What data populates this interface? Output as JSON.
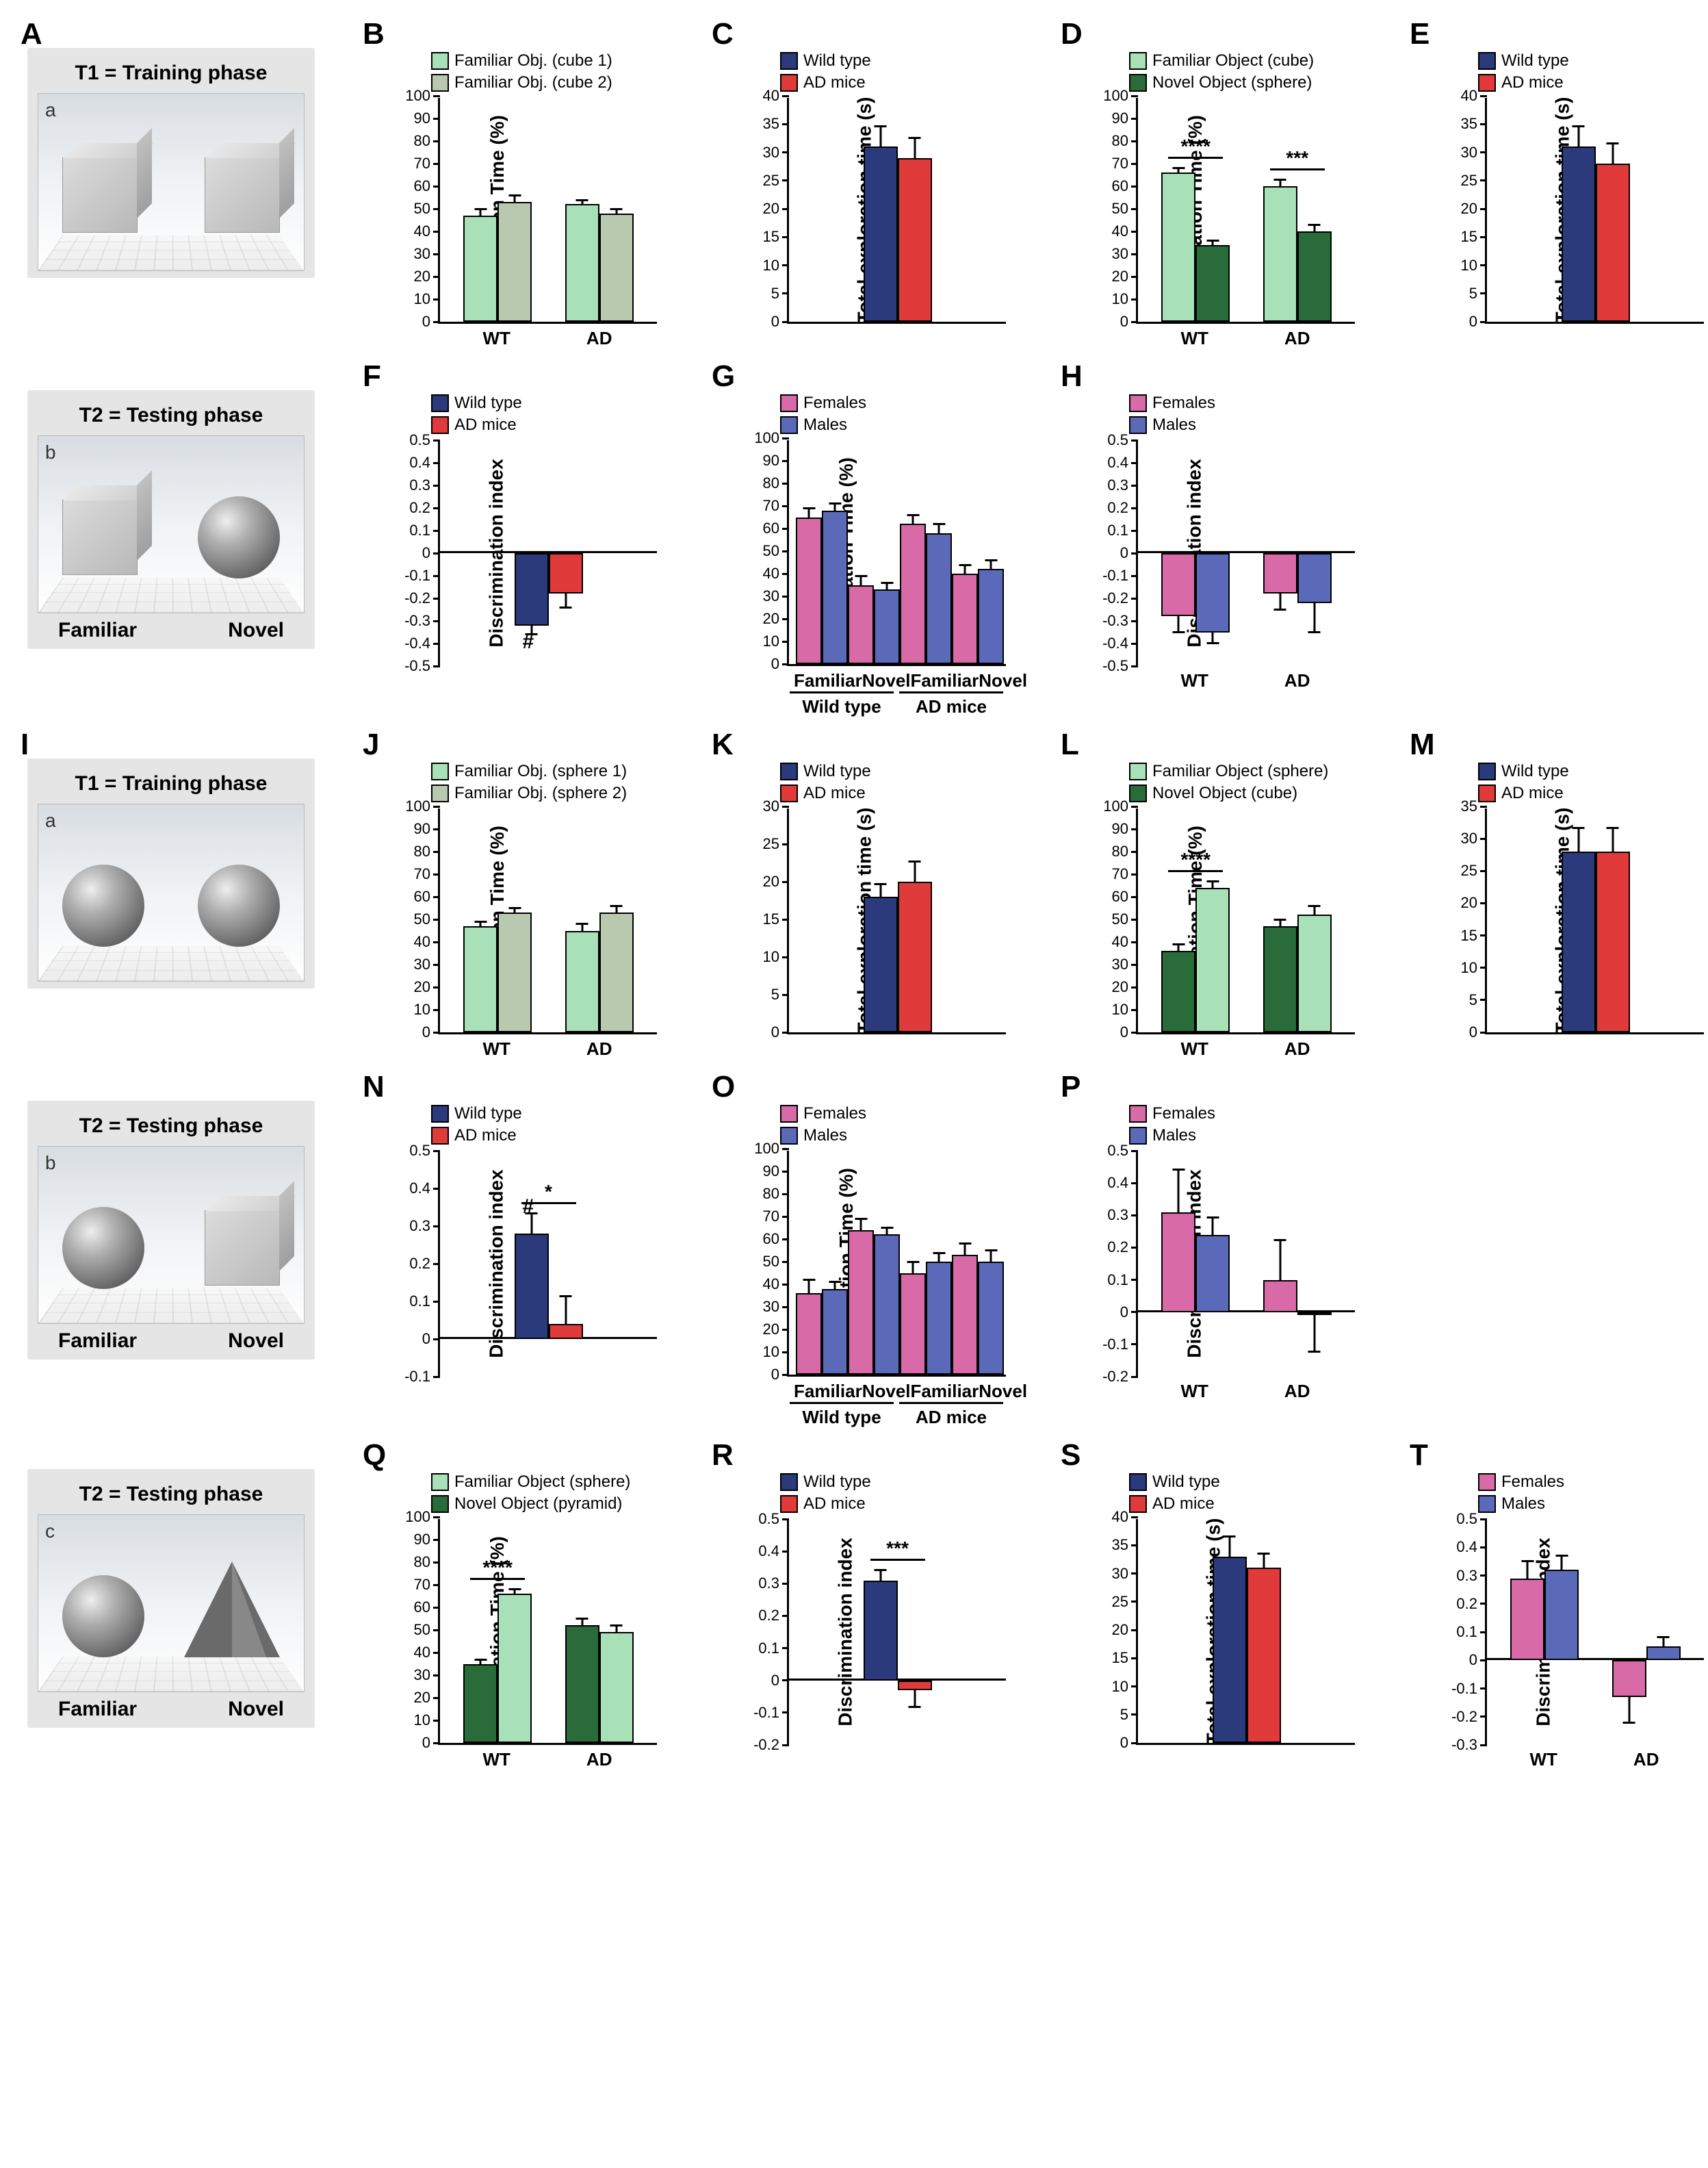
{
  "colors": {
    "lightgreen": "#a8e0b8",
    "sage": "#b9c9b0",
    "darkgreen": "#2a6b3a",
    "navy": "#2a3a7a",
    "red": "#e03a3a",
    "pink": "#d86aa8",
    "blue": "#5a6ab8"
  },
  "schematic_labels": {
    "training": "T1 = Training phase",
    "testing": "T2 = Testing phase",
    "familiar": "Familiar",
    "novel": "Novel"
  },
  "axis_labels": {
    "exploration_pct": "Exploration Time (%)",
    "total_time": "Total exploration time (s)",
    "discrimination": "Discrimination index"
  },
  "tick_labels": {
    "wt": "WT",
    "ad": "AD",
    "wildtype": "Wild type",
    "admice": "AD mice",
    "familiar": "Familiar",
    "novel": "Novel",
    "females": "Females",
    "males": "Males"
  },
  "legends": {
    "B": [
      {
        "label": "Familiar Obj. (cube 1)",
        "color": "lightgreen"
      },
      {
        "label": "Familiar Obj. (cube 2)",
        "color": "sage"
      }
    ],
    "C": [
      {
        "label": "Wild type",
        "color": "navy"
      },
      {
        "label": "AD mice",
        "color": "red"
      }
    ],
    "D": [
      {
        "label": "Familiar Object (cube)",
        "color": "lightgreen"
      },
      {
        "label": "Novel Object (sphere)",
        "color": "darkgreen"
      }
    ],
    "E": [
      {
        "label": "Wild type",
        "color": "navy"
      },
      {
        "label": "AD mice",
        "color": "red"
      }
    ],
    "F": [
      {
        "label": "Wild type",
        "color": "navy"
      },
      {
        "label": "AD mice",
        "color": "red"
      }
    ],
    "G": [
      {
        "label": "Females",
        "color": "pink"
      },
      {
        "label": "Males",
        "color": "blue"
      }
    ],
    "H": [
      {
        "label": "Females",
        "color": "pink"
      },
      {
        "label": "Males",
        "color": "blue"
      }
    ],
    "J": [
      {
        "label": "Familiar Obj. (sphere 1)",
        "color": "lightgreen"
      },
      {
        "label": "Familiar Obj. (sphere 2)",
        "color": "sage"
      }
    ],
    "K": [
      {
        "label": "Wild type",
        "color": "navy"
      },
      {
        "label": "AD mice",
        "color": "red"
      }
    ],
    "L": [
      {
        "label": "Familiar Object (sphere)",
        "color": "lightgreen"
      },
      {
        "label": "Novel Object (cube)",
        "color": "darkgreen"
      }
    ],
    "M": [
      {
        "label": "Wild type",
        "color": "navy"
      },
      {
        "label": "AD mice",
        "color": "red"
      }
    ],
    "N": [
      {
        "label": "Wild type",
        "color": "navy"
      },
      {
        "label": "AD mice",
        "color": "red"
      }
    ],
    "O": [
      {
        "label": "Females",
        "color": "pink"
      },
      {
        "label": "Males",
        "color": "blue"
      }
    ],
    "P": [
      {
        "label": "Females",
        "color": "pink"
      },
      {
        "label": "Males",
        "color": "blue"
      }
    ],
    "Q": [
      {
        "label": "Familiar Object (sphere)",
        "color": "lightgreen"
      },
      {
        "label": "Novel Object (pyramid)",
        "color": "darkgreen"
      }
    ],
    "R": [
      {
        "label": "Wild type",
        "color": "navy"
      },
      {
        "label": "AD mice",
        "color": "red"
      }
    ],
    "S": [
      {
        "label": "Wild type",
        "color": "navy"
      },
      {
        "label": "AD mice",
        "color": "red"
      }
    ],
    "T": [
      {
        "label": "Females",
        "color": "pink"
      },
      {
        "label": "Males",
        "color": "blue"
      }
    ]
  },
  "charts": {
    "B": {
      "ylabel": "exploration_pct",
      "ylim": [
        0,
        100
      ],
      "ystep": 10,
      "groups": [
        {
          "x": "WT",
          "bars": [
            {
              "c": "lightgreen",
              "v": 47,
              "e": 4
            },
            {
              "c": "sage",
              "v": 53,
              "e": 4
            }
          ]
        },
        {
          "x": "AD",
          "bars": [
            {
              "c": "lightgreen",
              "v": 52,
              "e": 3
            },
            {
              "c": "sage",
              "v": 48,
              "e": 3
            }
          ]
        }
      ]
    },
    "C": {
      "ylabel": "total_time",
      "ylim": [
        0,
        40
      ],
      "ystep": 5,
      "groups": [
        {
          "x": "",
          "bars": [
            {
              "c": "navy",
              "v": 31,
              "e": 4
            },
            {
              "c": "red",
              "v": 29,
              "e": 4
            }
          ]
        }
      ]
    },
    "D": {
      "ylabel": "exploration_pct",
      "ylim": [
        0,
        100
      ],
      "ystep": 10,
      "groups": [
        {
          "x": "WT",
          "bars": [
            {
              "c": "lightgreen",
              "v": 66,
              "e": 3
            },
            {
              "c": "darkgreen",
              "v": 34,
              "e": 3
            }
          ],
          "sig": "****"
        },
        {
          "x": "AD",
          "bars": [
            {
              "c": "lightgreen",
              "v": 60,
              "e": 4
            },
            {
              "c": "darkgreen",
              "v": 40,
              "e": 4
            }
          ],
          "sig": "***"
        }
      ]
    },
    "E": {
      "ylabel": "total_time",
      "ylim": [
        0,
        40
      ],
      "ystep": 5,
      "groups": [
        {
          "x": "",
          "bars": [
            {
              "c": "navy",
              "v": 31,
              "e": 4
            },
            {
              "c": "red",
              "v": 28,
              "e": 4
            }
          ]
        }
      ]
    },
    "F": {
      "ylabel": "discrimination",
      "ylim": [
        -0.5,
        0.5
      ],
      "ystep": 0.1,
      "groups": [
        {
          "x": "",
          "bars": [
            {
              "c": "navy",
              "v": -0.32,
              "e": 0.05,
              "hash": true
            },
            {
              "c": "red",
              "v": -0.18,
              "e": 0.07
            }
          ]
        }
      ]
    },
    "G": {
      "ylabel": "exploration_pct",
      "ylim": [
        0,
        100
      ],
      "ystep": 10,
      "supergroups": [
        "Wild type",
        "AD mice"
      ],
      "groups": [
        {
          "x": "Familiar",
          "bars": [
            {
              "c": "pink",
              "v": 65,
              "e": 5
            },
            {
              "c": "blue",
              "v": 68,
              "e": 4
            }
          ]
        },
        {
          "x": "Novel",
          "bars": [
            {
              "c": "pink",
              "v": 35,
              "e": 5
            },
            {
              "c": "blue",
              "v": 33,
              "e": 4
            }
          ]
        },
        {
          "x": "Familiar",
          "bars": [
            {
              "c": "pink",
              "v": 62,
              "e": 5
            },
            {
              "c": "blue",
              "v": 58,
              "e": 5
            }
          ]
        },
        {
          "x": "Novel",
          "bars": [
            {
              "c": "pink",
              "v": 40,
              "e": 5
            },
            {
              "c": "blue",
              "v": 42,
              "e": 5
            }
          ]
        }
      ]
    },
    "H": {
      "ylabel": "discrimination",
      "ylim": [
        -0.5,
        0.5
      ],
      "ystep": 0.1,
      "groups": [
        {
          "x": "WT",
          "bars": [
            {
              "c": "pink",
              "v": -0.28,
              "e": 0.08
            },
            {
              "c": "blue",
              "v": -0.35,
              "e": 0.06
            }
          ]
        },
        {
          "x": "AD",
          "bars": [
            {
              "c": "pink",
              "v": -0.18,
              "e": 0.08
            },
            {
              "c": "blue",
              "v": -0.22,
              "e": 0.14
            }
          ]
        }
      ]
    },
    "J": {
      "ylabel": "exploration_pct",
      "ylim": [
        0,
        100
      ],
      "ystep": 10,
      "groups": [
        {
          "x": "WT",
          "bars": [
            {
              "c": "lightgreen",
              "v": 47,
              "e": 3
            },
            {
              "c": "sage",
              "v": 53,
              "e": 3
            }
          ]
        },
        {
          "x": "AD",
          "bars": [
            {
              "c": "lightgreen",
              "v": 45,
              "e": 4
            },
            {
              "c": "sage",
              "v": 53,
              "e": 4
            }
          ]
        }
      ]
    },
    "K": {
      "ylabel": "total_time",
      "ylim": [
        0,
        30
      ],
      "ystep": 5,
      "groups": [
        {
          "x": "",
          "bars": [
            {
              "c": "navy",
              "v": 18,
              "e": 2
            },
            {
              "c": "red",
              "v": 20,
              "e": 3
            }
          ]
        }
      ]
    },
    "L": {
      "ylabel": "exploration_pct",
      "ylim": [
        0,
        100
      ],
      "ystep": 10,
      "groups": [
        {
          "x": "WT",
          "bars": [
            {
              "c": "darkgreen",
              "v": 36,
              "e": 4
            },
            {
              "c": "lightgreen",
              "v": 64,
              "e": 4
            }
          ],
          "sig": "****"
        },
        {
          "x": "AD",
          "bars": [
            {
              "c": "darkgreen",
              "v": 47,
              "e": 4
            },
            {
              "c": "lightgreen",
              "v": 52,
              "e": 5
            }
          ]
        }
      ]
    },
    "M": {
      "ylabel": "total_time",
      "ylim": [
        0,
        35
      ],
      "ystep": 5,
      "groups": [
        {
          "x": "",
          "bars": [
            {
              "c": "navy",
              "v": 28,
              "e": 4
            },
            {
              "c": "red",
              "v": 28,
              "e": 4
            }
          ]
        }
      ]
    },
    "N": {
      "ylabel": "discrimination",
      "ylim": [
        -0.1,
        0.5
      ],
      "ystep": 0.1,
      "groups": [
        {
          "x": "",
          "bars": [
            {
              "c": "navy",
              "v": 0.28,
              "e": 0.06,
              "hash": true
            },
            {
              "c": "red",
              "v": 0.04,
              "e": 0.08
            }
          ],
          "sig": "*"
        }
      ]
    },
    "O": {
      "ylabel": "exploration_pct",
      "ylim": [
        0,
        100
      ],
      "ystep": 10,
      "supergroups": [
        "Wild type",
        "AD mice"
      ],
      "groups": [
        {
          "x": "Familiar",
          "bars": [
            {
              "c": "pink",
              "v": 36,
              "e": 7
            },
            {
              "c": "blue",
              "v": 38,
              "e": 4
            }
          ]
        },
        {
          "x": "Novel",
          "bars": [
            {
              "c": "pink",
              "v": 64,
              "e": 6
            },
            {
              "c": "blue",
              "v": 62,
              "e": 4
            }
          ]
        },
        {
          "x": "Familiar",
          "bars": [
            {
              "c": "pink",
              "v": 45,
              "e": 6
            },
            {
              "c": "blue",
              "v": 50,
              "e": 5
            }
          ]
        },
        {
          "x": "Novel",
          "bars": [
            {
              "c": "pink",
              "v": 53,
              "e": 6
            },
            {
              "c": "blue",
              "v": 50,
              "e": 6
            }
          ]
        }
      ]
    },
    "P": {
      "ylabel": "discrimination",
      "ylim": [
        -0.2,
        0.5
      ],
      "ystep": 0.1,
      "groups": [
        {
          "x": "WT",
          "bars": [
            {
              "c": "pink",
              "v": 0.31,
              "e": 0.14
            },
            {
              "c": "blue",
              "v": 0.24,
              "e": 0.06
            }
          ]
        },
        {
          "x": "AD",
          "bars": [
            {
              "c": "pink",
              "v": 0.1,
              "e": 0.13
            },
            {
              "c": "blue",
              "v": -0.01,
              "e": 0.12
            }
          ]
        }
      ]
    },
    "Q": {
      "ylabel": "exploration_pct",
      "ylim": [
        0,
        100
      ],
      "ystep": 10,
      "groups": [
        {
          "x": "WT",
          "bars": [
            {
              "c": "darkgreen",
              "v": 35,
              "e": 3
            },
            {
              "c": "lightgreen",
              "v": 66,
              "e": 3
            }
          ],
          "sig": "****"
        },
        {
          "x": "AD",
          "bars": [
            {
              "c": "darkgreen",
              "v": 52,
              "e": 4
            },
            {
              "c": "lightgreen",
              "v": 49,
              "e": 4
            }
          ]
        }
      ]
    },
    "R": {
      "ylabel": "discrimination",
      "ylim": [
        -0.2,
        0.5
      ],
      "ystep": 0.1,
      "groups": [
        {
          "x": "",
          "bars": [
            {
              "c": "navy",
              "v": 0.31,
              "e": 0.04
            },
            {
              "c": "red",
              "v": -0.03,
              "e": 0.06
            }
          ],
          "sig": "***"
        }
      ]
    },
    "S": {
      "ylabel": "total_time",
      "ylim": [
        0,
        40
      ],
      "ystep": 5,
      "groups": [
        {
          "x": "",
          "bars": [
            {
              "c": "navy",
              "v": 33,
              "e": 4
            },
            {
              "c": "red",
              "v": 31,
              "e": 3
            }
          ]
        }
      ]
    },
    "T": {
      "ylabel": "discrimination",
      "ylim": [
        -0.3,
        0.5
      ],
      "ystep": 0.1,
      "groups": [
        {
          "x": "WT",
          "bars": [
            {
              "c": "pink",
              "v": 0.29,
              "e": 0.07
            },
            {
              "c": "blue",
              "v": 0.32,
              "e": 0.06
            }
          ]
        },
        {
          "x": "AD",
          "bars": [
            {
              "c": "pink",
              "v": -0.13,
              "e": 0.1
            },
            {
              "c": "blue",
              "v": 0.05,
              "e": 0.04
            }
          ]
        }
      ]
    }
  }
}
